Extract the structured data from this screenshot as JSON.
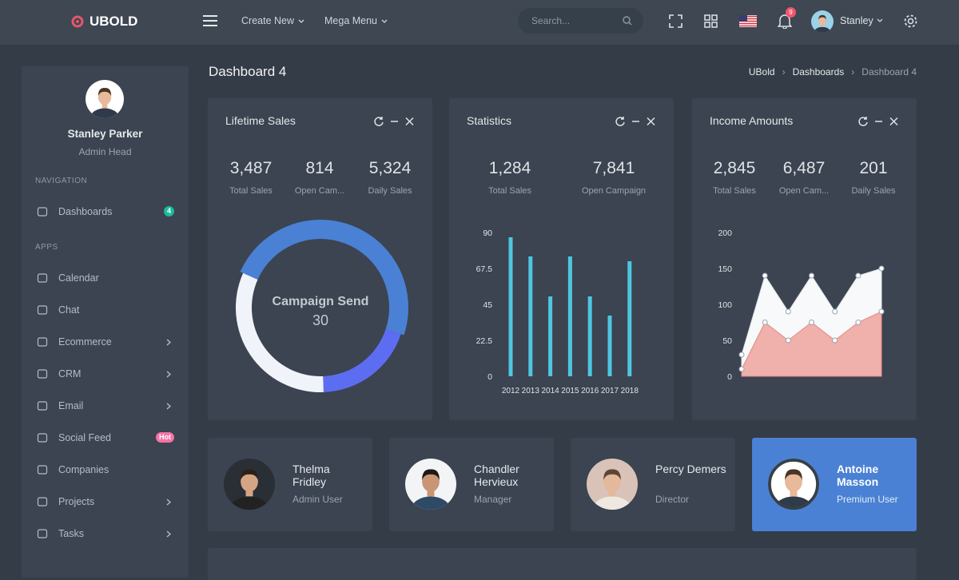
{
  "topbar": {
    "brand": "UBOLD",
    "menus": [
      "Create New",
      "Mega Menu"
    ],
    "search_placeholder": "Search...",
    "notifications": "9",
    "user": "Stanley"
  },
  "sidebar": {
    "user_name": "Stanley Parker",
    "user_role": "Admin Head",
    "sections": [
      {
        "title": "NAVIGATION",
        "items": [
          {
            "label": "Dashboards",
            "badge": "4",
            "badge_color": "#1abc9c"
          }
        ]
      },
      {
        "title": "APPS",
        "items": [
          {
            "label": "Calendar"
          },
          {
            "label": "Chat"
          },
          {
            "label": "Ecommerce",
            "submenu": true
          },
          {
            "label": "CRM",
            "submenu": true
          },
          {
            "label": "Email",
            "submenu": true
          },
          {
            "label": "Social Feed",
            "badge": "Hot",
            "badge_color": "#f672a7"
          },
          {
            "label": "Companies"
          },
          {
            "label": "Projects",
            "submenu": true
          },
          {
            "label": "Tasks",
            "submenu": true
          }
        ]
      }
    ]
  },
  "page": {
    "title": "Dashboard 4",
    "breadcrumb": [
      "UBold",
      "Dashboards",
      "Dashboard 4"
    ]
  },
  "cards": [
    {
      "title": "Lifetime Sales",
      "stats": [
        {
          "value": "3,487",
          "label": "Total Sales"
        },
        {
          "value": "814",
          "label": "Open Cam..."
        },
        {
          "value": "5,324",
          "label": "Daily Sales"
        }
      ]
    },
    {
      "title": "Statistics",
      "stats": [
        {
          "value": "1,284",
          "label": "Total Sales"
        },
        {
          "value": "7,841",
          "label": "Open Campaign"
        }
      ]
    },
    {
      "title": "Income Amounts",
      "stats": [
        {
          "value": "2,845",
          "label": "Total Sales"
        },
        {
          "value": "6,487",
          "label": "Open Cam..."
        },
        {
          "value": "201",
          "label": "Daily Sales"
        }
      ]
    }
  ],
  "chart_data": [
    {
      "type": "pie",
      "donut": true,
      "center_label": "Campaign Send",
      "highlight": 0,
      "values": [
        30,
        12,
        20
      ],
      "colors": [
        "#4a81d4",
        "#5d6df2",
        "#f1f3fa"
      ]
    },
    {
      "type": "bar",
      "categories": [
        "2012",
        "2013",
        "2014",
        "2015",
        "2016",
        "2017",
        "2018"
      ],
      "values": [
        87,
        75,
        50,
        75,
        50,
        38,
        72
      ],
      "color": "#4fc6e1",
      "ylim": [
        0,
        90
      ],
      "yticks": [
        0,
        22.5,
        45,
        67.5,
        90
      ],
      "grid": false
    },
    {
      "type": "area",
      "series": [
        {
          "color": "#f8f9fa",
          "line": "#dfe3e8",
          "values": [
            30,
            140,
            90,
            140,
            90,
            140,
            150
          ]
        },
        {
          "color": "#f0b0ab",
          "line": "#e58a84",
          "values": [
            10,
            75,
            50,
            75,
            50,
            75,
            90
          ]
        }
      ],
      "ylim": [
        0,
        200
      ],
      "yticks": [
        0,
        50,
        100,
        150,
        200
      ],
      "grid": false
    }
  ],
  "users": [
    {
      "name": "Thelma Fridley",
      "role": "Admin User"
    },
    {
      "name": "Chandler Hervieux",
      "role": "Manager"
    },
    {
      "name": "Percy Demers",
      "role": "Director"
    },
    {
      "name": "Antoine Masson",
      "role": "Premium User",
      "active": true
    }
  ]
}
